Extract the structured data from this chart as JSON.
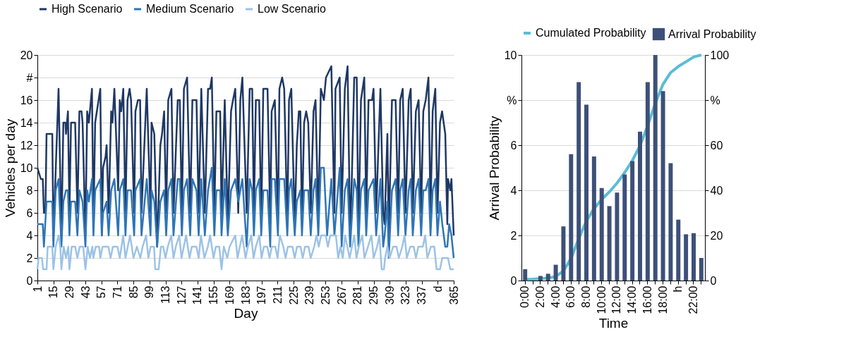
{
  "chart_data": [
    {
      "type": "line",
      "xlabel": "Day",
      "ylabel": "Vehicles per day",
      "xlim": [
        1,
        365
      ],
      "xticks": [
        1,
        15,
        29,
        43,
        57,
        71,
        85,
        99,
        113,
        127,
        141,
        155,
        169,
        183,
        197,
        211,
        225,
        239,
        253,
        267,
        281,
        295,
        309,
        323,
        337,
        {
          "value": 351,
          "label": "d"
        },
        365
      ],
      "ylim": [
        0,
        20
      ],
      "yticks": [
        0,
        2,
        4,
        6,
        8,
        10,
        12,
        14,
        16,
        {
          "value": 18,
          "label": "#"
        },
        20
      ],
      "grid": "y",
      "legend": "top",
      "series": [
        {
          "name": "High Scenario",
          "color": "#1f3864",
          "x": [
            1,
            4,
            5.7,
            6.7,
            8,
            9,
            14,
            15,
            19.5,
            22,
            23.7,
            25.5,
            26,
            27.7,
            29,
            30.4,
            34,
            36,
            37.7,
            39.6,
            40.5,
            43,
            44.5,
            46,
            48.7,
            50,
            51.5,
            56,
            57.3,
            58.4,
            60.6,
            61.5,
            63.3,
            65.5,
            66.6,
            68.3,
            71.6,
            73,
            74.3,
            76.1,
            78,
            79.8,
            81.6,
            82.9,
            85.6,
            86.7,
            88.9,
            90.8,
            92,
            96.6,
            99.9,
            100.8,
            103.2,
            105.7,
            108.5,
            110,
            111.8,
            113.6,
            115.4,
            118.2,
            120,
            123.7,
            125.5,
            127.3,
            129.1,
            131.9,
            134.6,
            136.5,
            140.1,
            142,
            144.3,
            147.4,
            150.2,
            152,
            153.5,
            155.7,
            157.5,
            160.8,
            162,
            164.8,
            167.5,
            170.3,
            172,
            174,
            176.6,
            178.4,
            180.2,
            184,
            186.6,
            188.8,
            190.3,
            192,
            194.9,
            196.7,
            198.5,
            202.2,
            204.6,
            205.8,
            208.6,
            211.3,
            212.6,
            215,
            216.8,
            219.5,
            221,
            223,
            226,
            227.8,
            229.6,
            230.9,
            232.3,
            234.2,
            236,
            237.8,
            240,
            242.4,
            244.2,
            246.6,
            248.8,
            251.5,
            253.3,
            258,
            260.7,
            261.6,
            265.3,
            267,
            269.8,
            272.2,
            274.4,
            275.9,
            278,
            280.2,
            281.7,
            283.9,
            286.8,
            288.5,
            290.5,
            293.6,
            294.9,
            297.2,
            300.9,
            303.3,
            304.6,
            307,
            308.2,
            311,
            314.2,
            316.4,
            318.2,
            320.4,
            322.8,
            325.6,
            327.4,
            329.2,
            331.9,
            334.3,
            336.5,
            338.4,
            340.5,
            342.9,
            344.7,
            346.6,
            348.9,
            350.8,
            353,
            354.8,
            357.6,
            359.4,
            360,
            362,
            363,
            365
          ],
          "values": [
            10,
            9,
            9,
            6,
            6,
            13,
            13,
            4,
            17,
            4,
            14,
            14,
            13,
            15,
            6,
            14,
            14,
            6,
            15,
            15,
            14,
            4,
            15,
            14,
            17,
            5,
            14,
            17,
            4,
            10,
            11,
            12,
            6,
            15,
            14,
            17,
            8,
            16,
            15,
            17,
            6,
            16,
            17,
            16,
            6,
            15,
            16,
            16,
            6,
            17,
            6,
            14,
            13,
            3,
            12,
            13,
            15,
            6,
            16,
            17,
            6,
            16,
            16,
            6,
            17,
            18,
            6,
            16,
            16,
            6,
            17,
            6,
            17,
            17,
            18,
            6,
            15,
            15,
            6,
            16,
            5,
            15,
            16,
            17,
            6,
            16,
            18,
            6,
            17,
            17,
            6,
            16,
            16,
            5,
            17,
            17,
            5,
            15,
            16,
            5,
            17,
            18,
            17,
            5,
            16,
            17,
            5,
            12,
            15,
            15,
            5,
            14,
            15,
            14,
            6,
            15,
            16,
            5,
            17,
            16,
            18,
            19,
            6,
            17,
            18,
            6,
            17,
            19,
            4,
            9,
            18,
            18,
            4,
            16,
            18,
            6,
            16,
            16,
            17,
            6,
            17,
            6,
            5,
            13,
            4,
            16,
            16,
            6,
            16,
            17,
            6,
            16,
            17,
            6,
            15,
            16,
            6,
            15,
            16,
            18,
            6,
            15,
            17,
            6,
            14,
            15,
            13,
            5,
            9,
            8,
            9,
            4
          ]
        },
        {
          "name": "Medium Scenario",
          "color": "#2e75b6",
          "x": [
            1,
            5.7,
            6.7,
            9,
            14,
            15,
            17,
            19.5,
            22,
            23.7,
            26,
            27.7,
            29,
            30.4,
            34,
            36,
            37.7,
            40.5,
            43,
            44.5,
            46,
            48.7,
            50,
            51.5,
            56,
            57.3,
            58.4,
            61.5,
            63.3,
            65.5,
            68.3,
            71.6,
            73,
            76.1,
            78,
            79.8,
            82.9,
            85.6,
            86.7,
            90.8,
            92,
            96.6,
            99.9,
            100.8,
            103.2,
            105.7,
            108.5,
            111.8,
            113.6,
            115.4,
            118.2,
            120,
            123.7,
            125.5,
            127.3,
            129.1,
            131.9,
            134.6,
            136.5,
            140.1,
            142,
            144.3,
            147.4,
            150.2,
            153.5,
            155.7,
            157.5,
            160.8,
            162,
            164.8,
            167.5,
            170.3,
            174,
            176.7,
            178.4,
            180.2,
            184,
            186.6,
            188.8,
            190.3,
            192,
            194.9,
            196.7,
            198.5,
            202.2,
            204.6,
            205.8,
            208.6,
            211.3,
            212.6,
            216.8,
            219.5,
            221,
            223,
            226,
            227.8,
            230.9,
            232.3,
            234.2,
            237.8,
            240,
            242.4,
            244.2,
            246.6,
            248.8,
            251.5,
            254.3,
            258,
            260.7,
            265.3,
            267,
            269.8,
            272.2,
            274.4,
            278,
            280.2,
            281.7,
            283.9,
            286.8,
            288.5,
            290.5,
            294.9,
            297.2,
            300.9,
            303.3,
            304.6,
            307,
            308.2,
            311,
            314.2,
            316.4,
            318.2,
            320.4,
            322.8,
            325.6,
            327.4,
            329.2,
            331.9,
            334.3,
            336.5,
            338.4,
            340.5,
            342.9,
            344.7,
            346.6,
            348.9,
            350.8,
            353,
            355,
            357.6,
            359.4,
            361,
            363,
            365
          ],
          "values": [
            5,
            5,
            3,
            7,
            7,
            3,
            8,
            9,
            3,
            7,
            8,
            8,
            4,
            7,
            7,
            4,
            8,
            7,
            3,
            8,
            7,
            9,
            4,
            8,
            9,
            4,
            6,
            7,
            4,
            8,
            9,
            4,
            8,
            9,
            4,
            8,
            8,
            4,
            8,
            9,
            4,
            9,
            4,
            8,
            7,
            3,
            7,
            8,
            4,
            8,
            9,
            4,
            9,
            9,
            4,
            8,
            9,
            4,
            9,
            8,
            4,
            9,
            4,
            8,
            10,
            4,
            8,
            8,
            4,
            9,
            4,
            8,
            9,
            7,
            8,
            9,
            3,
            9,
            8,
            4,
            8,
            9,
            4,
            8,
            8,
            3,
            9,
            9,
            4,
            9,
            9,
            4,
            8,
            9,
            4,
            7,
            8,
            4,
            8,
            8,
            4,
            8,
            9,
            4,
            10,
            10,
            4,
            9,
            4,
            10,
            3,
            8,
            9,
            3,
            9,
            8,
            3,
            8,
            9,
            4,
            8,
            9,
            4,
            9,
            3,
            4,
            7,
            2,
            8,
            9,
            4,
            8,
            9,
            4,
            8,
            9,
            4,
            8,
            9,
            4,
            8,
            8,
            9,
            4,
            8,
            9,
            4,
            7,
            5,
            3,
            3,
            5,
            4,
            2
          ]
        },
        {
          "name": "Low Scenario",
          "color": "#9dc3e6",
          "x": [
            1,
            2,
            5,
            6,
            9,
            10,
            14,
            15,
            17,
            19.5,
            21,
            22,
            24,
            26,
            28,
            29,
            31,
            34,
            36,
            38,
            41,
            43,
            45,
            47,
            49,
            50,
            52,
            55,
            56,
            58,
            63,
            65,
            67,
            71,
            73,
            76,
            78,
            80,
            82,
            85,
            88,
            91,
            93,
            96,
            98,
            100,
            103,
            104,
            107,
            109,
            111,
            113,
            115,
            118,
            120,
            122,
            125,
            127,
            129,
            131,
            134,
            136,
            140,
            142,
            144,
            147,
            150,
            152,
            155,
            157,
            160,
            162,
            164,
            167,
            169,
            174,
            176,
            178,
            180,
            183,
            185,
            188,
            190,
            192,
            195,
            197,
            199,
            202,
            204,
            206,
            209,
            211,
            213,
            216,
            218,
            220,
            224,
            226,
            228,
            231,
            233,
            235,
            238,
            240,
            243,
            245,
            247,
            249,
            253,
            255,
            257,
            262,
            264,
            266,
            268,
            270,
            272,
            274,
            276,
            278,
            280,
            282,
            285,
            287,
            290,
            293,
            295,
            298,
            300,
            302,
            304,
            305,
            307,
            309,
            312,
            315,
            317,
            320,
            322,
            324,
            327,
            330,
            332,
            334,
            338,
            340,
            342,
            345,
            348,
            350,
            353,
            355,
            360,
            362,
            365
          ],
          "values": [
            1,
            2,
            2,
            1,
            1,
            3,
            3,
            1,
            3,
            4,
            3,
            1,
            3,
            2,
            3,
            1,
            3,
            3,
            2,
            3,
            3,
            1,
            3,
            2,
            3,
            2,
            3,
            3,
            2,
            3,
            3,
            2,
            3,
            3,
            2,
            4,
            2,
            3,
            4,
            2,
            3,
            2,
            3,
            4,
            2,
            3,
            3,
            1,
            1,
            3,
            3,
            2,
            3,
            4,
            2,
            3,
            4,
            2,
            3,
            4,
            2,
            3,
            3,
            2,
            4,
            2,
            3,
            4,
            2,
            3,
            3,
            1,
            3,
            2,
            3,
            4,
            2,
            3,
            4,
            2,
            3,
            4,
            2,
            3,
            4,
            2,
            3,
            3,
            2,
            3,
            3,
            2,
            4,
            3,
            2,
            3,
            3,
            2,
            3,
            3,
            2,
            3,
            3,
            2,
            3,
            4,
            3,
            4,
            4,
            3,
            4,
            4,
            2,
            3,
            2,
            4,
            3,
            2,
            3,
            4,
            2,
            3,
            4,
            2,
            3,
            4,
            2,
            3,
            4,
            1,
            1,
            2,
            3,
            2,
            3,
            3,
            2,
            3,
            4,
            2,
            3,
            3,
            2,
            3,
            3,
            4,
            2,
            3,
            3,
            1,
            1,
            2,
            2,
            1,
            1
          ]
        }
      ]
    },
    {
      "type": "bar",
      "xlabel": "Time",
      "ylabel": "Arrival Probability",
      "categories": [
        "0:00",
        null,
        "2:00",
        null,
        "4:00",
        null,
        "6:00",
        null,
        "8:00",
        null,
        "10:00",
        null,
        "12:00",
        null,
        "14:00",
        null,
        "16:00",
        null,
        "18:00",
        null,
        "h",
        null,
        "22:00",
        null
      ],
      "ylim": [
        0,
        10
      ],
      "yticks": [
        0,
        2,
        4,
        6,
        {
          "value": 8,
          "label": "%"
        },
        10
      ],
      "y2lim": [
        0,
        100
      ],
      "y2ticks": [
        0,
        20,
        40,
        60,
        {
          "value": 80,
          "label": "%"
        },
        100
      ],
      "grid": "y",
      "legend": "top",
      "series": [
        {
          "name": "Arrival Probability",
          "color": "#3d5078",
          "values": [
            0.5,
            null,
            0.2,
            0.3,
            0.7,
            2.4,
            5.6,
            8.8,
            7.8,
            5.5,
            4.1,
            3.3,
            3.9,
            4.7,
            5.3,
            6.6,
            8.8,
            10,
            8.4,
            5.2,
            2.7,
            2.05,
            2.1,
            1.0
          ]
        },
        {
          "name": "Cumulated Probability",
          "type": "line",
          "axis": "y2",
          "color": "#5bbcd6",
          "values": [
            0.5,
            0.6,
            0.8,
            1.1,
            1.8,
            4.2,
            9.8,
            18.6,
            26.4,
            31.9,
            36,
            39.3,
            43.2,
            47.9,
            53.2,
            59.8,
            68.6,
            78.6,
            87,
            92.2,
            94.9,
            97,
            99.1,
            100
          ]
        }
      ]
    }
  ]
}
